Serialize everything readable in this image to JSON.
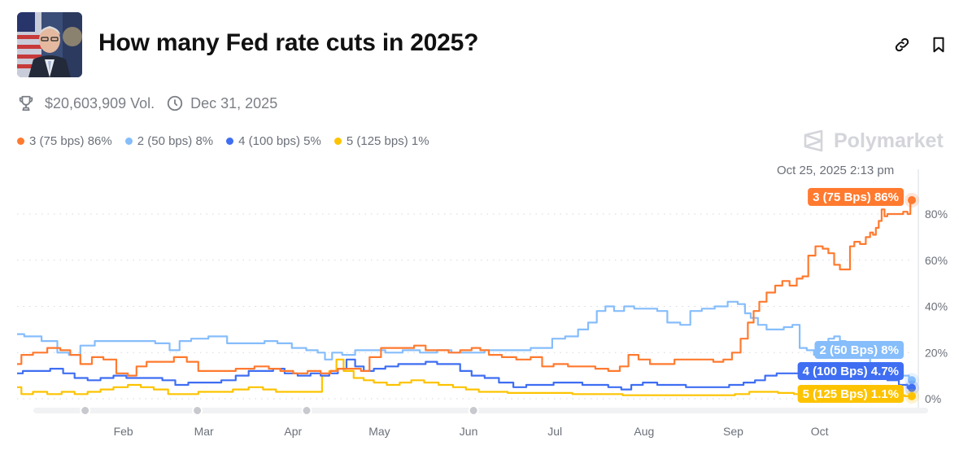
{
  "header": {
    "title": "How many Fed rate cuts in 2025?",
    "thumbnail_alt": "Fed chair portrait",
    "link_icon": "link-icon",
    "bookmark_icon": "bookmark-icon"
  },
  "meta": {
    "volume": "$20,603,909 Vol.",
    "end_date": "Dec 31, 2025",
    "volume_icon": "trophy-icon",
    "date_icon": "clock-icon"
  },
  "legend": [
    {
      "label": "3 (75 bps) 86%",
      "color": "#ff7a2f"
    },
    {
      "label": "2 (50 bps) 8%",
      "color": "#86bdfb"
    },
    {
      "label": "4 (100 bps) 5%",
      "color": "#3f6ef2"
    },
    {
      "label": "5 (125 bps) 1%",
      "color": "#fdc300"
    }
  ],
  "watermark": "Polymarket",
  "hover_timestamp": "Oct 25, 2025 2:13 pm",
  "chart_data": {
    "type": "line",
    "title": "How many Fed rate cuts in 2025?",
    "xlabel": "",
    "ylabel": "",
    "x_range": [
      "2025-01-01",
      "2025-10-25"
    ],
    "ylim": [
      0,
      90
    ],
    "y_ticks": [
      "0%",
      "20%",
      "40%",
      "60%",
      "80%"
    ],
    "y_tick_values": [
      0,
      20,
      40,
      60,
      80
    ],
    "x_ticks": [
      "Feb",
      "Mar",
      "Apr",
      "May",
      "Jun",
      "Jul",
      "Aug",
      "Sep",
      "Oct"
    ],
    "x_tick_days": [
      31,
      59,
      90,
      120,
      151,
      181,
      212,
      243,
      273
    ],
    "grid": "horizontal-dotted",
    "end_day": 297,
    "series": [
      {
        "name": "3 (75 Bps)",
        "color": "#ff7a2f",
        "end_label": "3 (75 Bps) 86%",
        "points": [
          [
            0,
            15
          ],
          [
            3,
            19
          ],
          [
            8,
            20
          ],
          [
            13,
            22
          ],
          [
            17,
            21
          ],
          [
            20,
            19
          ],
          [
            24,
            15
          ],
          [
            28,
            18
          ],
          [
            32,
            17
          ],
          [
            37,
            11
          ],
          [
            40,
            10
          ],
          [
            43,
            14
          ],
          [
            47,
            16
          ],
          [
            52,
            16
          ],
          [
            57,
            18
          ],
          [
            61,
            16
          ],
          [
            65,
            12
          ],
          [
            72,
            12
          ],
          [
            80,
            13
          ],
          [
            85,
            14
          ],
          [
            90,
            13
          ],
          [
            93,
            12
          ],
          [
            99,
            11
          ],
          [
            103,
            12
          ],
          [
            108,
            11
          ],
          [
            110,
            12
          ],
          [
            113,
            13
          ],
          [
            118,
            13
          ],
          [
            121,
            12
          ],
          [
            124,
            18
          ],
          [
            129,
            22
          ],
          [
            132,
            22
          ],
          [
            136,
            22
          ],
          [
            140,
            23
          ],
          [
            144,
            21
          ],
          [
            148,
            21
          ],
          [
            152,
            20
          ],
          [
            156,
            21
          ],
          [
            160,
            22
          ],
          [
            162,
            21
          ],
          [
            166,
            19
          ],
          [
            171,
            18
          ],
          [
            176,
            17
          ],
          [
            181,
            18
          ],
          [
            184,
            14
          ],
          [
            189,
            15
          ],
          [
            194,
            14
          ],
          [
            199,
            14
          ],
          [
            203,
            13
          ],
          [
            208,
            12
          ],
          [
            211,
            14
          ],
          [
            214,
            19
          ],
          [
            218,
            17
          ],
          [
            222,
            15
          ],
          [
            226,
            15
          ],
          [
            231,
            17
          ],
          [
            235,
            17
          ],
          [
            240,
            17
          ],
          [
            244,
            16
          ],
          [
            247,
            17
          ],
          [
            250,
            20
          ],
          [
            253,
            26
          ],
          [
            255,
            33
          ],
          [
            257,
            38
          ],
          [
            259,
            42
          ],
          [
            262,
            46
          ],
          [
            265,
            49
          ],
          [
            267,
            51
          ],
          [
            270,
            49
          ],
          [
            272,
            52
          ],
          [
            274,
            53
          ],
          [
            276,
            62
          ],
          [
            279,
            66
          ],
          [
            281,
            65
          ],
          [
            283,
            63
          ],
          [
            285,
            58
          ],
          [
            287,
            56
          ],
          [
            289,
            56
          ],
          [
            290,
            66
          ],
          [
            292,
            68
          ],
          [
            294,
            67
          ],
          [
            296,
            70
          ],
          [
            297,
            72
          ],
          [
            298,
            71
          ],
          [
            299,
            74
          ],
          [
            300,
            77
          ],
          [
            301,
            82
          ],
          [
            302,
            79
          ],
          [
            303,
            80
          ],
          [
            305,
            80
          ],
          [
            307,
            80
          ],
          [
            309,
            81
          ],
          [
            310,
            80
          ],
          [
            311,
            86
          ]
        ]
      },
      {
        "name": "2 (50 Bps)",
        "color": "#86bdfb",
        "end_label": "2 (50 Bps) 8%",
        "points": [
          [
            0,
            28
          ],
          [
            5,
            27
          ],
          [
            12,
            25
          ],
          [
            16,
            20
          ],
          [
            20,
            19
          ],
          [
            24,
            23
          ],
          [
            30,
            25
          ],
          [
            38,
            25
          ],
          [
            45,
            25
          ],
          [
            51,
            24
          ],
          [
            55,
            21
          ],
          [
            58,
            25
          ],
          [
            63,
            26
          ],
          [
            70,
            27
          ],
          [
            76,
            24
          ],
          [
            80,
            24
          ],
          [
            84,
            24
          ],
          [
            88,
            25
          ],
          [
            93,
            24
          ],
          [
            98,
            22
          ],
          [
            103,
            21
          ],
          [
            106,
            20
          ],
          [
            108,
            17
          ],
          [
            111,
            20
          ],
          [
            115,
            19
          ],
          [
            120,
            21
          ],
          [
            125,
            21
          ],
          [
            131,
            20
          ],
          [
            137,
            21
          ],
          [
            143,
            20
          ],
          [
            149,
            21
          ],
          [
            153,
            20
          ],
          [
            157,
            20
          ],
          [
            160,
            20
          ],
          [
            165,
            21
          ],
          [
            170,
            21
          ],
          [
            176,
            21
          ],
          [
            181,
            22
          ],
          [
            184,
            22
          ],
          [
            188,
            26
          ],
          [
            193,
            27
          ],
          [
            197,
            30
          ],
          [
            200,
            33
          ],
          [
            203,
            38
          ],
          [
            206,
            40
          ],
          [
            209,
            38
          ],
          [
            213,
            40
          ],
          [
            216,
            39
          ],
          [
            220,
            39
          ],
          [
            225,
            38
          ],
          [
            227,
            33
          ],
          [
            229,
            33
          ],
          [
            232,
            32
          ],
          [
            236,
            38
          ],
          [
            240,
            39
          ],
          [
            245,
            40
          ],
          [
            249,
            42
          ],
          [
            252,
            41
          ],
          [
            254,
            37
          ],
          [
            256,
            35
          ],
          [
            259,
            32
          ],
          [
            262,
            30
          ],
          [
            265,
            30
          ],
          [
            268,
            31
          ],
          [
            271,
            32
          ],
          [
            273,
            22
          ],
          [
            276,
            21
          ],
          [
            278,
            19
          ],
          [
            281,
            22
          ],
          [
            283,
            26
          ],
          [
            285,
            27
          ],
          [
            287,
            25
          ],
          [
            289,
            24
          ],
          [
            292,
            20
          ],
          [
            295,
            18
          ],
          [
            298,
            14
          ],
          [
            301,
            12
          ],
          [
            304,
            11
          ],
          [
            307,
            10
          ],
          [
            309,
            10
          ],
          [
            311,
            8
          ]
        ]
      },
      {
        "name": "4 (100 Bps)",
        "color": "#3f6ef2",
        "end_label": "4 (100 Bps) 4.7%",
        "points": [
          [
            0,
            11
          ],
          [
            4,
            12
          ],
          [
            9,
            12
          ],
          [
            14,
            13
          ],
          [
            18,
            11
          ],
          [
            22,
            9
          ],
          [
            27,
            8
          ],
          [
            31,
            9
          ],
          [
            36,
            10
          ],
          [
            40,
            9
          ],
          [
            44,
            9
          ],
          [
            48,
            9
          ],
          [
            53,
            8
          ],
          [
            57,
            6
          ],
          [
            62,
            7
          ],
          [
            68,
            7
          ],
          [
            74,
            8
          ],
          [
            78,
            10
          ],
          [
            83,
            12
          ],
          [
            87,
            12
          ],
          [
            91,
            13
          ],
          [
            95,
            11
          ],
          [
            100,
            10
          ],
          [
            104,
            11
          ],
          [
            107,
            10
          ],
          [
            110,
            11
          ],
          [
            113,
            13
          ],
          [
            116,
            17
          ],
          [
            119,
            14
          ],
          [
            122,
            12
          ],
          [
            126,
            13
          ],
          [
            130,
            14
          ],
          [
            135,
            15
          ],
          [
            140,
            15
          ],
          [
            144,
            16
          ],
          [
            148,
            15
          ],
          [
            152,
            15
          ],
          [
            156,
            12
          ],
          [
            160,
            10
          ],
          [
            165,
            9
          ],
          [
            170,
            7
          ],
          [
            175,
            5
          ],
          [
            179,
            6
          ],
          [
            184,
            6
          ],
          [
            189,
            7
          ],
          [
            194,
            7
          ],
          [
            199,
            6
          ],
          [
            203,
            6
          ],
          [
            208,
            5
          ],
          [
            212,
            4
          ],
          [
            215,
            6
          ],
          [
            220,
            7
          ],
          [
            225,
            6
          ],
          [
            230,
            6
          ],
          [
            235,
            5
          ],
          [
            240,
            5
          ],
          [
            245,
            5
          ],
          [
            250,
            6
          ],
          [
            255,
            7
          ],
          [
            258,
            8
          ],
          [
            262,
            10
          ],
          [
            266,
            11
          ],
          [
            270,
            11
          ],
          [
            274,
            9
          ],
          [
            278,
            9
          ],
          [
            283,
            9
          ],
          [
            289,
            9
          ],
          [
            295,
            9
          ],
          [
            300,
            10
          ],
          [
            305,
            8
          ],
          [
            308,
            6
          ],
          [
            311,
            4.7
          ]
        ]
      },
      {
        "name": "5 (125 Bps)",
        "color": "#fdc300",
        "end_label": "5 (125 Bps) 1.1%",
        "points": [
          [
            0,
            5
          ],
          [
            3,
            2
          ],
          [
            8,
            3
          ],
          [
            13,
            2
          ],
          [
            18,
            3
          ],
          [
            22,
            2
          ],
          [
            27,
            3
          ],
          [
            31,
            4
          ],
          [
            36,
            5
          ],
          [
            41,
            6
          ],
          [
            45,
            5
          ],
          [
            50,
            4
          ],
          [
            55,
            2
          ],
          [
            60,
            2
          ],
          [
            66,
            3
          ],
          [
            72,
            3
          ],
          [
            78,
            4
          ],
          [
            83,
            5
          ],
          [
            88,
            4
          ],
          [
            92,
            3
          ],
          [
            97,
            3
          ],
          [
            101,
            3
          ],
          [
            105,
            3
          ],
          [
            107,
            10
          ],
          [
            110,
            12
          ],
          [
            112,
            17
          ],
          [
            115,
            12
          ],
          [
            119,
            9
          ],
          [
            122,
            8
          ],
          [
            126,
            7
          ],
          [
            131,
            6
          ],
          [
            135,
            7
          ],
          [
            139,
            8
          ],
          [
            144,
            7
          ],
          [
            149,
            6
          ],
          [
            154,
            5
          ],
          [
            158,
            4
          ],
          [
            163,
            3
          ],
          [
            168,
            3
          ],
          [
            173,
            2.5
          ],
          [
            178,
            2.5
          ],
          [
            184,
            2.5
          ],
          [
            190,
            2.5
          ],
          [
            196,
            2
          ],
          [
            202,
            2
          ],
          [
            208,
            2
          ],
          [
            213,
            1.5
          ],
          [
            218,
            1.5
          ],
          [
            224,
            1.5
          ],
          [
            230,
            1.5
          ],
          [
            236,
            1.5
          ],
          [
            242,
            1.5
          ],
          [
            247,
            1.5
          ],
          [
            252,
            2
          ],
          [
            257,
            3
          ],
          [
            262,
            3
          ],
          [
            267,
            2.5
          ],
          [
            273,
            2
          ],
          [
            280,
            2
          ],
          [
            287,
            2
          ],
          [
            294,
            2
          ],
          [
            300,
            1.5
          ],
          [
            306,
            1.5
          ],
          [
            311,
            1.1
          ]
        ]
      }
    ],
    "timeline_markers_days": [
      18,
      57,
      95,
      153
    ]
  }
}
